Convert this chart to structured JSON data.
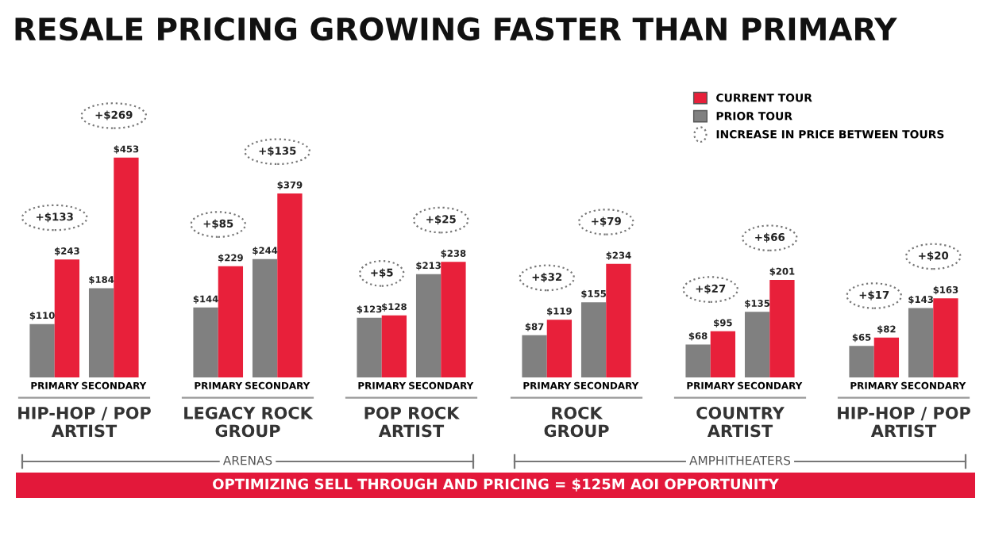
{
  "chart_data": [
    {
      "type": "bar",
      "title": "RESALE PRICING GROWING FASTER THAN PRIMARY",
      "xlabel": "HIP-HOP / POP\nARTIST",
      "categories": [
        "PRIMARY",
        "SECONDARY"
      ],
      "tick_labels": "x",
      "legend": "top right",
      "series": [
        {
          "name": "PRIOR TOUR",
          "color": "#808080",
          "values": [
            110,
            184
          ],
          "value_labels": [
            "$110",
            "$184"
          ]
        },
        {
          "name": "CURRENT TOUR",
          "color": "#e8203a",
          "values": [
            243,
            453
          ],
          "value_labels": [
            "$243",
            "$453"
          ]
        }
      ],
      "annotations": [
        "+$133",
        "+$269",
        "OPTIMIZING SELL THROUGH AND PRICING = $125M AOI OPPORTUNITY",
        "INCREASE IN PRICE BETWEEN TOURS"
      ]
    },
    {
      "type": "bar",
      "xlabel": "LEGACY ROCK\nGROUP",
      "categories": [
        "PRIMARY",
        "SECONDARY"
      ],
      "tick_labels": "x",
      "series": [
        {
          "color": "#808080",
          "values": [
            144,
            244
          ],
          "value_labels": [
            "$144",
            "$244"
          ]
        },
        {
          "color": "#e8203a",
          "values": [
            229,
            379
          ],
          "value_labels": [
            "$229",
            "$379"
          ]
        }
      ],
      "annotations": [
        "+$85",
        "+$135",
        "ARENAS"
      ]
    },
    {
      "type": "bar",
      "xlabel": "POP ROCK\nARTIST",
      "categories": [
        "PRIMARY",
        "SECONDARY"
      ],
      "tick_labels": "x",
      "series": [
        {
          "color": "#808080",
          "values": [
            123,
            213
          ],
          "value_labels": [
            "$123",
            "$213"
          ]
        },
        {
          "color": "#e8203a",
          "values": [
            128,
            238
          ],
          "value_labels": [
            "$128",
            "$238"
          ]
        }
      ],
      "annotations": [
        "+$5",
        "+$25"
      ]
    },
    {
      "type": "bar",
      "xlabel": "ROCK\nGROUP",
      "categories": [
        "PRIMARY",
        "SECONDARY"
      ],
      "tick_labels": "x",
      "series": [
        {
          "color": "#808080",
          "values": [
            87,
            155
          ],
          "value_labels": [
            "$87",
            "$155"
          ]
        },
        {
          "color": "#e8203a",
          "values": [
            119,
            234
          ],
          "value_labels": [
            "$119",
            "$234"
          ]
        }
      ],
      "annotations": [
        "+$32",
        "+$79"
      ]
    },
    {
      "type": "bar",
      "xlabel": "COUNTRY\nARTIST",
      "categories": [
        "PRIMARY",
        "SECONDARY"
      ],
      "tick_labels": "x",
      "series": [
        {
          "color": "#808080",
          "values": [
            68,
            135
          ],
          "value_labels": [
            "$68",
            "$135"
          ]
        },
        {
          "color": "#e8203a",
          "values": [
            95,
            201
          ],
          "value_labels": [
            "$95",
            "$201"
          ]
        }
      ],
      "annotations": [
        "+$27",
        "+$66",
        "AMPHITHEATERS"
      ]
    },
    {
      "type": "bar",
      "xlabel": "HIP-HOP / POP\nARTIST",
      "categories": [
        "PRIMARY",
        "SECONDARY"
      ],
      "tick_labels": "x",
      "series": [
        {
          "color": "#808080",
          "values": [
            65,
            143
          ],
          "value_labels": [
            "$65",
            "$143"
          ]
        },
        {
          "color": "#e8203a",
          "values": [
            82,
            163
          ],
          "value_labels": [
            "$82",
            "$163"
          ]
        }
      ],
      "annotations": [
        "+$17",
        "+$20"
      ]
    }
  ]
}
